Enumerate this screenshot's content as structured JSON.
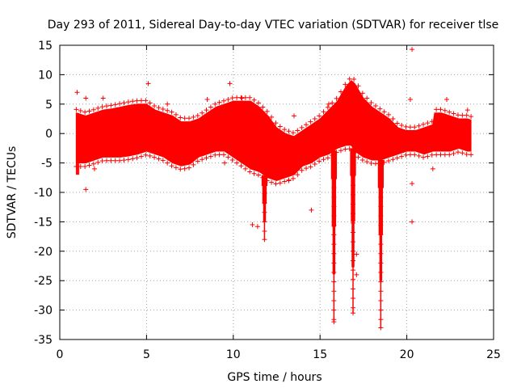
{
  "chart_data": {
    "type": "scatter",
    "title": "Day 293 of 2011, Sidereal Day-to-day VTEC variation (SDTVAR) for receiver tlse",
    "xlabel": "GPS time / hours",
    "ylabel": "SDTVAR / TECUs",
    "xlim": [
      0,
      25
    ],
    "ylim": [
      -35,
      15
    ],
    "xticks": [
      "0",
      "5",
      "10",
      "15",
      "20",
      "25"
    ],
    "yticks": [
      "15",
      "10",
      "5",
      "0",
      "-5",
      "-10",
      "-15",
      "-20",
      "-25",
      "-30",
      "-35"
    ],
    "grid": true,
    "marker": "+",
    "series_color": "#ff0000",
    "envelope": {
      "name": "SDTVAR band",
      "x": [
        0.95,
        1.5,
        2.0,
        2.5,
        3.0,
        3.5,
        4.0,
        4.5,
        5.0,
        5.5,
        6.0,
        6.5,
        7.0,
        7.5,
        8.0,
        8.5,
        9.0,
        9.5,
        10.0,
        10.5,
        11.0,
        11.5,
        12.0,
        12.5,
        13.0,
        13.5,
        14.0,
        14.5,
        15.0,
        15.5,
        16.0,
        16.5,
        16.8,
        17.0,
        17.5,
        18.0,
        18.5,
        19.0,
        19.5,
        20.0,
        20.5,
        21.0,
        21.5,
        21.6,
        22.0,
        22.5,
        23.0,
        23.5,
        23.7
      ],
      "upper": [
        3.5,
        3.0,
        3.5,
        4.0,
        4.2,
        4.5,
        4.8,
        5.0,
        5.0,
        4.0,
        3.5,
        3.0,
        2.0,
        2.0,
        2.5,
        3.5,
        4.5,
        5.0,
        5.5,
        5.5,
        5.5,
        4.5,
        3.0,
        1.0,
        0.0,
        -0.5,
        0.5,
        1.5,
        2.5,
        4.0,
        5.5,
        8.0,
        9.0,
        8.5,
        6.0,
        4.5,
        3.5,
        2.5,
        1.0,
        0.5,
        0.5,
        1.0,
        1.5,
        3.5,
        3.5,
        3.0,
        2.5,
        2.5,
        2.3
      ],
      "lower": [
        -5.0,
        -5.0,
        -4.5,
        -4.0,
        -4.0,
        -4.0,
        -3.8,
        -3.5,
        -3.0,
        -3.5,
        -4.0,
        -5.0,
        -5.5,
        -5.2,
        -4.0,
        -3.5,
        -3.0,
        -3.0,
        -4.0,
        -5.0,
        -6.0,
        -6.5,
        -7.5,
        -8.0,
        -7.5,
        -7.0,
        -5.5,
        -5.0,
        -4.0,
        -3.5,
        -2.5,
        -2.0,
        -2.0,
        -3.0,
        -4.0,
        -4.5,
        -4.5,
        -4.0,
        -3.5,
        -3.0,
        -3.0,
        -3.5,
        -3.0,
        -3.0,
        -3.0,
        -3.0,
        -2.5,
        -3.0,
        -3.0
      ]
    },
    "dips": [
      {
        "x": 11.8,
        "min": -18.0
      },
      {
        "x": 15.8,
        "min": -32.0
      },
      {
        "x": 16.9,
        "min": -30.5
      },
      {
        "x": 18.5,
        "min": -33.0
      }
    ],
    "outliers": [
      {
        "x": 20.3,
        "y": 14.3
      },
      {
        "x": 9.8,
        "y": 8.5
      },
      {
        "x": 5.1,
        "y": 8.5
      },
      {
        "x": 1.0,
        "y": 7.0
      },
      {
        "x": 1.5,
        "y": 6.0
      },
      {
        "x": 2.5,
        "y": 6.0
      },
      {
        "x": 6.2,
        "y": 5.0
      },
      {
        "x": 8.5,
        "y": 5.8
      },
      {
        "x": 10.5,
        "y": 6.0
      },
      {
        "x": 15.5,
        "y": 5.0
      },
      {
        "x": 20.2,
        "y": 5.8
      },
      {
        "x": 22.3,
        "y": 5.8
      },
      {
        "x": 23.5,
        "y": 4.0
      },
      {
        "x": 13.5,
        "y": 3.0
      },
      {
        "x": 1.5,
        "y": -9.5
      },
      {
        "x": 11.1,
        "y": -15.5
      },
      {
        "x": 11.4,
        "y": -15.8
      },
      {
        "x": 14.5,
        "y": -13.0
      },
      {
        "x": 20.3,
        "y": -8.5
      },
      {
        "x": 20.3,
        "y": -15.0
      },
      {
        "x": 21.5,
        "y": -6.0
      },
      {
        "x": 17.1,
        "y": -20.5
      },
      {
        "x": 17.1,
        "y": -24.0
      },
      {
        "x": 13.2,
        "y": -8.0
      },
      {
        "x": 9.5,
        "y": -5.0
      },
      {
        "x": 2.0,
        "y": -6.0
      }
    ]
  }
}
